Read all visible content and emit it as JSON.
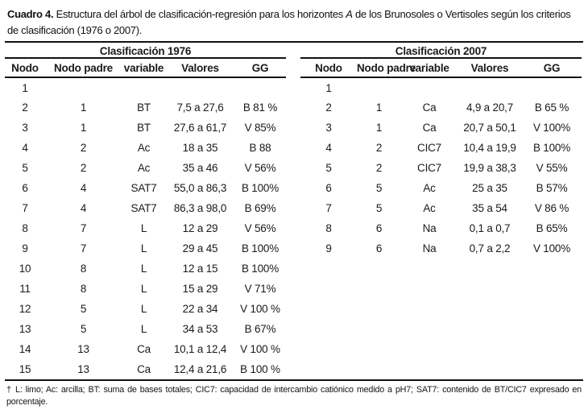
{
  "caption": {
    "label": "Cuadro 4.",
    "segment1": " Estructura del árbol de clasificación-regresión para los horizontes ",
    "emphasis": "A",
    "segment2": " de los Brunosoles o Vertisoles según los criterios de clasificación (1976 o 2007)."
  },
  "tables": [
    {
      "name": "Clasificación 1976",
      "columns": [
        "Nodo",
        "Nodo padre",
        "variable",
        "Valores",
        "GG"
      ],
      "rows": [
        [
          "1",
          "",
          "",
          "",
          ""
        ],
        [
          "2",
          "1",
          "BT",
          "7,5 a 27,6",
          "B 81 %"
        ],
        [
          "3",
          "1",
          "BT",
          "27,6 a 61,7",
          "V 85%"
        ],
        [
          "4",
          "2",
          "Ac",
          "18 a 35",
          "B 88"
        ],
        [
          "5",
          "2",
          "Ac",
          "35 a 46",
          "V 56%"
        ],
        [
          "6",
          "4",
          "SAT7",
          "55,0 a 86,3",
          "B 100%"
        ],
        [
          "7",
          "4",
          "SAT7",
          "86,3 a 98,0",
          "B 69%"
        ],
        [
          "8",
          "7",
          "L",
          "12 a 29",
          "V 56%"
        ],
        [
          "9",
          "7",
          "L",
          "29 a 45",
          "B 100%"
        ],
        [
          "10",
          "8",
          "L",
          "12 a 15",
          "B 100%"
        ],
        [
          "11",
          "8",
          "L",
          "15 a 29",
          "V 71%"
        ],
        [
          "12",
          "5",
          "L",
          "22 a 34",
          "V 100 %"
        ],
        [
          "13",
          "5",
          "L",
          "34 a 53",
          "B 67%"
        ],
        [
          "14",
          "13",
          "Ca",
          "10,1 a 12,4",
          "V 100 %"
        ],
        [
          "15",
          "13",
          "Ca",
          "12,4 a 21,6",
          "B 100 %"
        ]
      ]
    },
    {
      "name": "Clasificación 2007",
      "columns": [
        "Nodo",
        "Nodo padre",
        "variable",
        "Valores",
        "GG"
      ],
      "rows": [
        [
          "1",
          "",
          "",
          "",
          ""
        ],
        [
          "2",
          "1",
          "Ca",
          "4,9 a 20,7",
          "B 65 %"
        ],
        [
          "3",
          "1",
          "Ca",
          "20,7 a 50,1",
          "V 100%"
        ],
        [
          "4",
          "2",
          "CIC7",
          "10,4 a 19,9",
          "B 100%"
        ],
        [
          "5",
          "2",
          "CIC7",
          "19,9 a 38,3",
          "V 55%"
        ],
        [
          "6",
          "5",
          "Ac",
          "25 a 35",
          "B 57%"
        ],
        [
          "7",
          "5",
          "Ac",
          "35 a 54",
          "V 86 %"
        ],
        [
          "8",
          "6",
          "Na",
          "0,1 a 0,7",
          "B 65%"
        ],
        [
          "9",
          "6",
          "Na",
          "0,7 a 2,2",
          "V 100%"
        ]
      ]
    }
  ],
  "footnote": "† L: limo; Ac: arcilla; BT: suma de bases totales; CIC7: capacidad de intercambio catiónico medido a pH7; SAT7: contenido de BT/CIC7 expresado en porcentaje.",
  "colors": {
    "text": "#1a1a1a",
    "rules": "#111111",
    "background": "#ffffff"
  }
}
